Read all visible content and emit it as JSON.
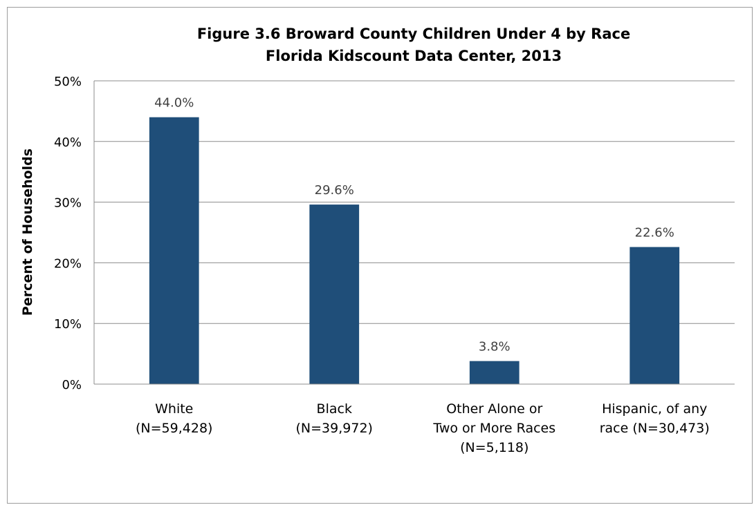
{
  "chart_data": {
    "type": "bar",
    "title": "Figure 3.6 Broward County Children Under 4 by Race",
    "subtitle": "Florida Kidscount Data Center, 2013",
    "xlabel": "",
    "ylabel": "Percent of Households",
    "ylim": [
      0,
      50
    ],
    "yticks": [
      "0%",
      "10%",
      "20%",
      "30%",
      "40%",
      "50%"
    ],
    "grid": true,
    "legend": "none",
    "bar_color": "#1f4e79",
    "categories": [
      [
        "White",
        "(N=59,428)"
      ],
      [
        "Black",
        "(N=39,972)"
      ],
      [
        "Other Alone or",
        "Two or More Races",
        "(N=5,118)"
      ],
      [
        "Hispanic, of any",
        "race (N=30,473)"
      ]
    ],
    "values": [
      44.0,
      29.6,
      3.8,
      22.6
    ],
    "data_labels": [
      "44.0%",
      "29.6%",
      "3.8%",
      "22.6%"
    ]
  }
}
